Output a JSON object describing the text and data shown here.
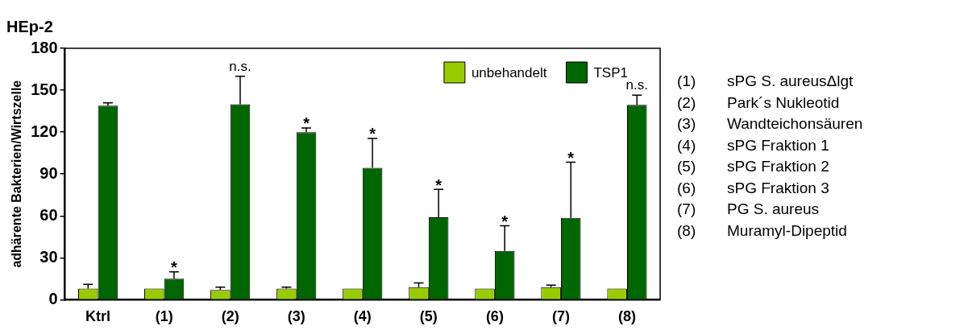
{
  "chart_data": {
    "type": "bar",
    "title": "HEp-2",
    "ylabel": "adhärente Bakterien/Wirtszelle",
    "categories": [
      "Ktrl",
      "(1)",
      "(2)",
      "(3)",
      "(4)",
      "(5)",
      "(6)",
      "(7)",
      "(8)"
    ],
    "series": [
      {
        "name": "unbehandelt",
        "color": "#99cc00",
        "values": [
          8,
          8,
          7,
          8,
          8,
          9,
          8,
          9,
          8
        ],
        "errors": [
          3,
          null,
          2,
          1,
          null,
          3,
          null,
          1.5,
          null
        ]
      },
      {
        "name": "TSP1",
        "color": "#006600",
        "values": [
          139,
          15,
          140,
          120,
          94.5,
          59,
          35,
          58.5,
          139.5
        ],
        "errors": [
          2,
          5,
          20,
          3,
          21,
          20,
          18,
          40,
          7
        ]
      }
    ],
    "ylim": [
      0,
      180
    ],
    "yticks": [
      0,
      30,
      60,
      90,
      120,
      150,
      180
    ],
    "grid": false,
    "legend": "top right",
    "annotations": [
      {
        "text": "*",
        "x": "(1)",
        "y": 15
      },
      {
        "text": "n.s.",
        "x": "(2)",
        "y": 140
      },
      {
        "text": "*",
        "x": "(3)",
        "y": 120
      },
      {
        "text": "*",
        "x": "(4)",
        "y": 94.5
      },
      {
        "text": "*",
        "x": "(5)",
        "y": 59
      },
      {
        "text": "*",
        "x": "(6)",
        "y": 35
      },
      "*",
      {
        "text": "n.s.",
        "x": "(8)",
        "y": 139.5
      },
      "(1)\tsPG S. aureusΔlgt",
      "(2)\tPark´s Nukleotid",
      "(3)\tWandteichonsäuren",
      "(4)\tsPG Fraktion 1",
      "(5)\tsPG Fraktion 2",
      "(6)\tsPG Fraktion 3",
      "(7)\tPG S. aureus",
      "(8)\tMuramyl-Dipeptid"
    ]
  }
}
